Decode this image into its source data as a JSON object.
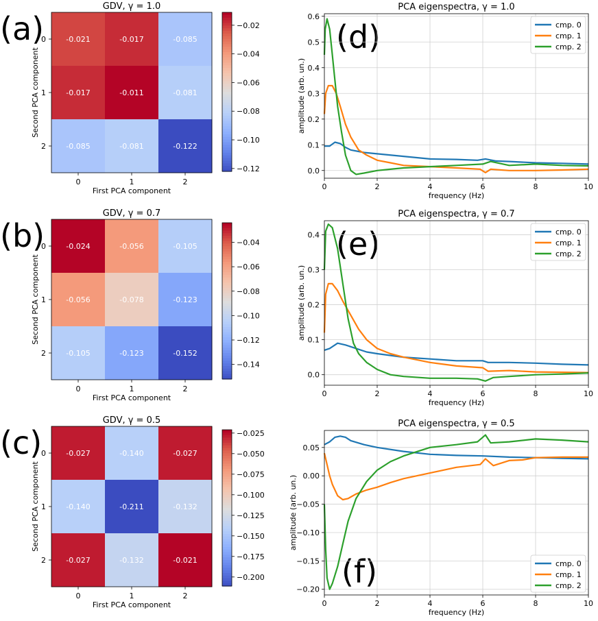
{
  "panel_labels": [
    "(a)",
    "(b)",
    "(c)",
    "(d)",
    "(e)",
    "(f)"
  ],
  "colors": {
    "cmp0": "#1f77b4",
    "cmp1": "#ff7f0e",
    "cmp2": "#2ca02c",
    "grid": "#d0d0d0"
  },
  "chart_data": [
    {
      "type": "heatmap",
      "title": "GDV, γ =  1.0",
      "xlabel": "First PCA component",
      "ylabel": "Second PCA component",
      "x_ticks": [
        "0",
        "1",
        "2"
      ],
      "y_ticks": [
        "0",
        "1",
        "2"
      ],
      "values": [
        [
          -0.021,
          -0.017,
          -0.085
        ],
        [
          -0.017,
          -0.011,
          -0.081
        ],
        [
          -0.085,
          -0.081,
          -0.122
        ]
      ],
      "value_labels": [
        [
          "-0.021",
          "-0.017",
          "-0.085"
        ],
        [
          "-0.017",
          "-0.011",
          "-0.081"
        ],
        [
          "-0.085",
          "-0.081",
          "-0.122"
        ]
      ],
      "colorbar_range": [
        -0.122,
        -0.011
      ],
      "colorbar_ticks": [
        -0.02,
        -0.04,
        -0.06,
        -0.08,
        -0.1,
        -0.12
      ],
      "colorbar_tick_labels": [
        "−0.02",
        "−0.04",
        "−0.06",
        "−0.08",
        "−0.10",
        "−0.12"
      ]
    },
    {
      "type": "heatmap",
      "title": "GDV, γ =  0.7",
      "xlabel": "First PCA component",
      "ylabel": "Second PCA component",
      "x_ticks": [
        "0",
        "1",
        "2"
      ],
      "y_ticks": [
        "0",
        "1",
        "2"
      ],
      "values": [
        [
          -0.024,
          -0.056,
          -0.105
        ],
        [
          -0.056,
          -0.078,
          -0.123
        ],
        [
          -0.105,
          -0.123,
          -0.152
        ]
      ],
      "value_labels": [
        [
          "-0.024",
          "-0.056",
          "-0.105"
        ],
        [
          "-0.056",
          "-0.078",
          "-0.123"
        ],
        [
          "-0.105",
          "-0.123",
          "-0.152"
        ]
      ],
      "colorbar_range": [
        -0.152,
        -0.024
      ],
      "colorbar_ticks": [
        -0.04,
        -0.06,
        -0.08,
        -0.1,
        -0.12,
        -0.14
      ],
      "colorbar_tick_labels": [
        "−0.04",
        "−0.06",
        "−0.08",
        "−0.10",
        "−0.12",
        "−0.14"
      ]
    },
    {
      "type": "heatmap",
      "title": "GDV, γ =  0.5",
      "xlabel": "First PCA component",
      "ylabel": "Second PCA component",
      "x_ticks": [
        "0",
        "1",
        "2"
      ],
      "y_ticks": [
        "0",
        "1",
        "2"
      ],
      "values": [
        [
          -0.027,
          -0.14,
          -0.027
        ],
        [
          -0.14,
          -0.211,
          -0.132
        ],
        [
          -0.027,
          -0.132,
          -0.021
        ]
      ],
      "value_labels": [
        [
          "-0.027",
          "-0.140",
          "-0.027"
        ],
        [
          "-0.140",
          "-0.211",
          "-0.132"
        ],
        [
          "-0.027",
          "-0.132",
          "-0.021"
        ]
      ],
      "colorbar_range": [
        -0.211,
        -0.021
      ],
      "colorbar_ticks": [
        -0.025,
        -0.05,
        -0.075,
        -0.1,
        -0.125,
        -0.15,
        -0.175,
        -0.2
      ],
      "colorbar_tick_labels": [
        "−0.025",
        "−0.050",
        "−0.075",
        "−0.100",
        "−0.125",
        "−0.150",
        "−0.175",
        "−0.200"
      ]
    },
    {
      "type": "line",
      "title": "PCA eigenspectra, γ =  1.0",
      "xlabel": "frequency (Hz)",
      "ylabel": "amplitude (arb. un.)",
      "xlim": [
        0,
        10
      ],
      "ylim": [
        -0.03,
        0.61
      ],
      "x_ticks": [
        0,
        2,
        4,
        6,
        8,
        10
      ],
      "x_tick_labels": [
        "0",
        "2",
        "4",
        "6",
        "8",
        "10"
      ],
      "y_ticks": [
        0.0,
        0.1,
        0.2,
        0.3,
        0.4,
        0.5,
        0.6
      ],
      "y_tick_labels": [
        "0.0",
        "0.1",
        "0.2",
        "0.3",
        "0.4",
        "0.5",
        "0.6"
      ],
      "legend": "top-right",
      "series": [
        {
          "name": "cmp. 0",
          "x": [
            0,
            0.2,
            0.4,
            0.6,
            0.8,
            1.0,
            1.5,
            2,
            3,
            4,
            5,
            5.8,
            6.1,
            6.5,
            7,
            8,
            9,
            10
          ],
          "y": [
            0.095,
            0.095,
            0.11,
            0.105,
            0.09,
            0.08,
            0.07,
            0.065,
            0.055,
            0.045,
            0.043,
            0.04,
            0.045,
            0.037,
            0.035,
            0.03,
            0.028,
            0.025
          ]
        },
        {
          "name": "cmp. 1",
          "x": [
            0,
            0.05,
            0.15,
            0.3,
            0.45,
            0.6,
            0.8,
            1.0,
            1.3,
            1.6,
            2,
            2.5,
            3,
            4,
            5,
            5.9,
            6.1,
            6.3,
            7,
            8,
            9,
            10
          ],
          "y": [
            0.22,
            0.3,
            0.33,
            0.33,
            0.3,
            0.25,
            0.18,
            0.13,
            0.08,
            0.06,
            0.04,
            0.03,
            0.02,
            0.015,
            0.01,
            0.005,
            -0.008,
            0.005,
            0.0,
            0.0,
            0.002,
            0.005
          ]
        },
        {
          "name": "cmp. 2",
          "x": [
            0,
            0.03,
            0.1,
            0.2,
            0.3,
            0.4,
            0.5,
            0.65,
            0.8,
            1.0,
            1.2,
            1.5,
            2,
            2.5,
            3,
            4,
            5,
            6,
            6.3,
            7,
            8,
            9,
            10
          ],
          "y": [
            0.45,
            0.55,
            0.59,
            0.55,
            0.45,
            0.35,
            0.25,
            0.15,
            0.06,
            0.0,
            -0.015,
            -0.01,
            0.0,
            0.005,
            0.01,
            0.015,
            0.02,
            0.025,
            0.035,
            0.02,
            0.025,
            0.02,
            0.018
          ]
        }
      ]
    },
    {
      "type": "line",
      "title": "PCA eigenspectra, γ =  0.7",
      "xlabel": "frequency (Hz)",
      "ylabel": "amplitude (arb. un.)",
      "xlim": [
        0,
        10
      ],
      "ylim": [
        -0.03,
        0.44
      ],
      "x_ticks": [
        0,
        2,
        4,
        6,
        8,
        10
      ],
      "x_tick_labels": [
        "0",
        "2",
        "4",
        "6",
        "8",
        "10"
      ],
      "y_ticks": [
        0.0,
        0.1,
        0.2,
        0.3,
        0.4
      ],
      "y_tick_labels": [
        "0.0",
        "0.1",
        "0.2",
        "0.3",
        "0.4"
      ],
      "legend": "top-right",
      "series": [
        {
          "name": "cmp. 0",
          "x": [
            0,
            0.2,
            0.5,
            0.8,
            1.2,
            1.6,
            2,
            3,
            4,
            5,
            6,
            6.2,
            7,
            8,
            9,
            10
          ],
          "y": [
            0.07,
            0.075,
            0.09,
            0.085,
            0.075,
            0.065,
            0.06,
            0.05,
            0.045,
            0.04,
            0.04,
            0.035,
            0.035,
            0.033,
            0.03,
            0.028
          ]
        },
        {
          "name": "cmp. 1",
          "x": [
            0,
            0.05,
            0.15,
            0.3,
            0.5,
            0.7,
            1.0,
            1.3,
            1.6,
            2,
            2.5,
            3,
            4,
            5,
            6,
            6.2,
            7,
            8,
            9,
            10
          ],
          "y": [
            0.12,
            0.23,
            0.26,
            0.26,
            0.24,
            0.21,
            0.17,
            0.13,
            0.1,
            0.075,
            0.06,
            0.05,
            0.035,
            0.025,
            0.02,
            0.01,
            0.012,
            0.008,
            0.007,
            0.006
          ]
        },
        {
          "name": "cmp. 2",
          "x": [
            0,
            0.05,
            0.15,
            0.3,
            0.5,
            0.7,
            0.9,
            1.1,
            1.3,
            1.6,
            2,
            2.5,
            3,
            4,
            5,
            5.8,
            6.1,
            6.4,
            7,
            8,
            9,
            10
          ],
          "y": [
            0.3,
            0.41,
            0.43,
            0.42,
            0.36,
            0.26,
            0.16,
            0.09,
            0.06,
            0.035,
            0.015,
            0.0,
            -0.005,
            -0.01,
            -0.01,
            -0.012,
            -0.018,
            -0.008,
            -0.005,
            0.0,
            0.002,
            0.005
          ]
        }
      ]
    },
    {
      "type": "line",
      "title": "PCA eigenspectra, γ =  0.5",
      "xlabel": "frequency (Hz)",
      "ylabel": "amplitude (arb. un.)",
      "xlim": [
        0,
        10
      ],
      "ylim": [
        -0.21,
        0.08
      ],
      "x_ticks": [
        0,
        2,
        4,
        6,
        8,
        10
      ],
      "x_tick_labels": [
        "0",
        "2",
        "4",
        "6",
        "8",
        "10"
      ],
      "y_ticks": [
        0.05,
        0.0,
        -0.05,
        -0.1,
        -0.15,
        -0.2
      ],
      "y_tick_labels": [
        "0.05",
        "0.00",
        "−0.05",
        "−0.10",
        "−0.15",
        "−0.20"
      ],
      "legend": "bottom-right",
      "series": [
        {
          "name": "cmp. 0",
          "x": [
            0,
            0.2,
            0.4,
            0.6,
            0.8,
            1.0,
            1.5,
            2,
            3,
            4,
            5,
            6,
            7,
            8,
            9,
            10
          ],
          "y": [
            0.055,
            0.06,
            0.068,
            0.07,
            0.068,
            0.062,
            0.055,
            0.05,
            0.043,
            0.038,
            0.036,
            0.035,
            0.033,
            0.032,
            0.031,
            0.03
          ]
        },
        {
          "name": "cmp. 1",
          "x": [
            0,
            0.1,
            0.2,
            0.3,
            0.5,
            0.7,
            0.9,
            1.2,
            1.6,
            2,
            2.5,
            3,
            4,
            5,
            5.9,
            6.1,
            6.4,
            7,
            7.5,
            8,
            9,
            10
          ],
          "y": [
            0.04,
            0.02,
            0.0,
            -0.015,
            -0.035,
            -0.042,
            -0.04,
            -0.032,
            -0.025,
            -0.02,
            -0.012,
            -0.005,
            0.005,
            0.015,
            0.02,
            0.03,
            0.018,
            0.027,
            0.028,
            0.032,
            0.033,
            0.033
          ]
        },
        {
          "name": "cmp. 2",
          "x": [
            0,
            0.05,
            0.1,
            0.2,
            0.3,
            0.5,
            0.7,
            0.9,
            1.2,
            1.6,
            2,
            2.5,
            3,
            4,
            5,
            5.8,
            6.1,
            6.3,
            7,
            8,
            9,
            10
          ],
          "y": [
            -0.05,
            -0.13,
            -0.18,
            -0.2,
            -0.19,
            -0.16,
            -0.12,
            -0.08,
            -0.04,
            -0.01,
            0.01,
            0.025,
            0.035,
            0.05,
            0.055,
            0.06,
            0.072,
            0.058,
            0.06,
            0.065,
            0.063,
            0.06
          ]
        }
      ]
    }
  ]
}
